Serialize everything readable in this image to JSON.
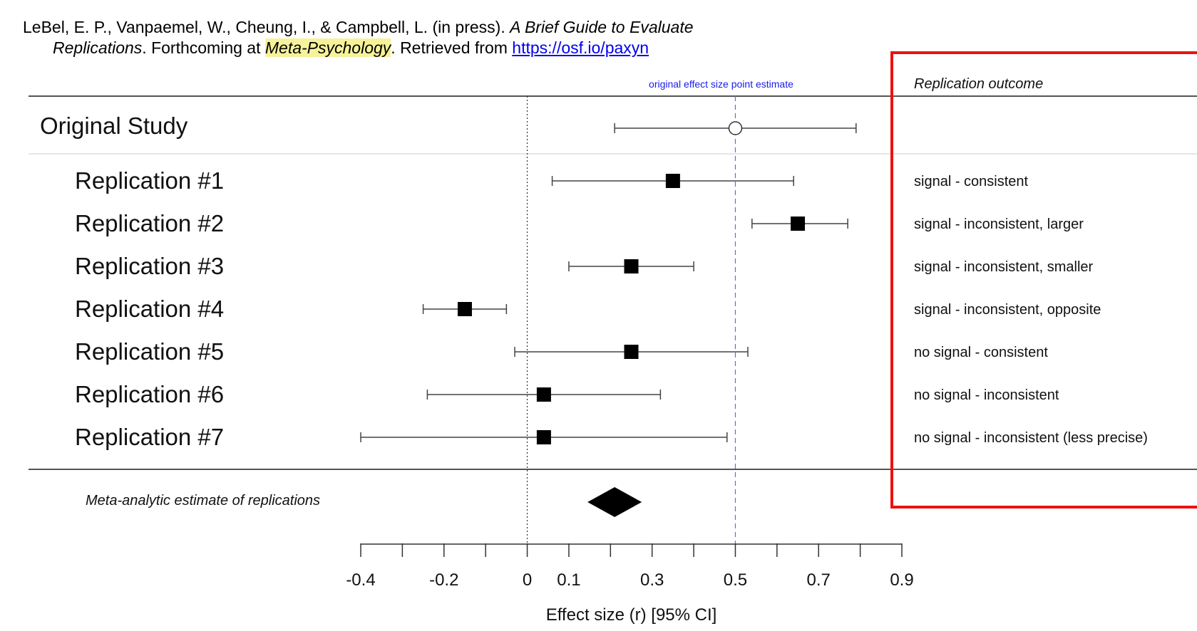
{
  "citation": {
    "authors": "LeBel, E. P., Vanpaemel, W., Cheung, I., & Campbell, L. (in press). ",
    "title_part1": "A Brief Guide to Evaluate",
    "title_part2": "Replications",
    "mid": ". Forthcoming at ",
    "journal": "Meta-Psychology",
    "retrieved": ". Retrieved from ",
    "url": "https://osf.io/paxyn"
  },
  "chart_data": {
    "type": "forest",
    "xlabel": "Effect size (r) [95% CI]",
    "xlim": [
      -0.4,
      0.9
    ],
    "xticks": [
      -0.4,
      -0.2,
      0,
      0.1,
      0.3,
      0.5,
      0.7,
      0.9
    ],
    "reference_line": {
      "value": 0.5,
      "label": "original effect size point estimate",
      "color": "#6666ee"
    },
    "zero_line": 0,
    "outcome_header": "Replication outcome",
    "original": {
      "label": "Original Study",
      "estimate": 0.5,
      "ci": [
        0.21,
        0.79
      ]
    },
    "replications": [
      {
        "label": "Replication #1",
        "estimate": 0.35,
        "ci": [
          0.06,
          0.64
        ],
        "outcome": "signal - consistent"
      },
      {
        "label": "Replication #2",
        "estimate": 0.65,
        "ci": [
          0.54,
          0.77
        ],
        "outcome": "signal - inconsistent, larger"
      },
      {
        "label": "Replication #3",
        "estimate": 0.25,
        "ci": [
          0.1,
          0.4
        ],
        "outcome": "signal - inconsistent, smaller"
      },
      {
        "label": "Replication #4",
        "estimate": -0.15,
        "ci": [
          -0.25,
          -0.05
        ],
        "outcome": "signal - inconsistent, opposite"
      },
      {
        "label": "Replication #5",
        "estimate": 0.25,
        "ci": [
          -0.03,
          0.53
        ],
        "outcome": "no signal - consistent"
      },
      {
        "label": "Replication #6",
        "estimate": 0.04,
        "ci": [
          -0.24,
          0.32
        ],
        "outcome": "no signal - inconsistent"
      },
      {
        "label": "Replication #7",
        "estimate": 0.04,
        "ci": [
          -0.4,
          0.48
        ],
        "outcome": "no signal - inconsistent (less precise)"
      }
    ],
    "meta": {
      "label": "Meta-analytic estimate of replications",
      "estimate": 0.21,
      "ci": [
        0.15,
        0.28
      ]
    },
    "highlight_color": "#ee1111"
  }
}
